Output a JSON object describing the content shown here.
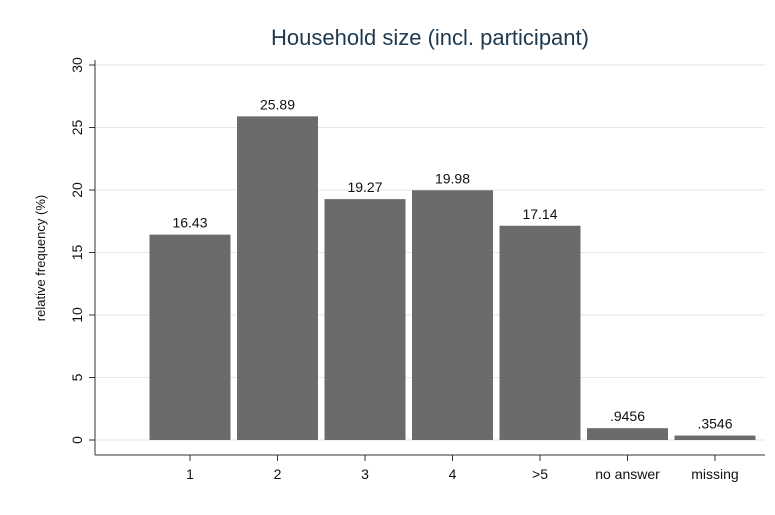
{
  "chart_data": {
    "type": "bar",
    "title": "Household size (incl. participant)",
    "xlabel": "",
    "ylabel": "relative frequency (%)",
    "categories": [
      "1",
      "2",
      "3",
      "4",
      ">5",
      "no answer",
      "missing"
    ],
    "values": [
      16.43,
      25.89,
      19.27,
      19.98,
      17.14,
      0.9456,
      0.3546
    ],
    "data_labels": [
      "16.43",
      "25.89",
      "19.27",
      "19.98",
      "17.14",
      ".9456",
      ".3546"
    ],
    "ylim": [
      0,
      30
    ],
    "yticks": [
      0,
      5,
      10,
      15,
      20,
      25,
      30
    ],
    "grid": true,
    "legend": "none",
    "colors": {
      "bar": "#6b6b6b",
      "plot_background": "#ffffff",
      "outer_background": "#ffffff",
      "grid": "#e6e6e6",
      "axis": "#333333"
    }
  }
}
